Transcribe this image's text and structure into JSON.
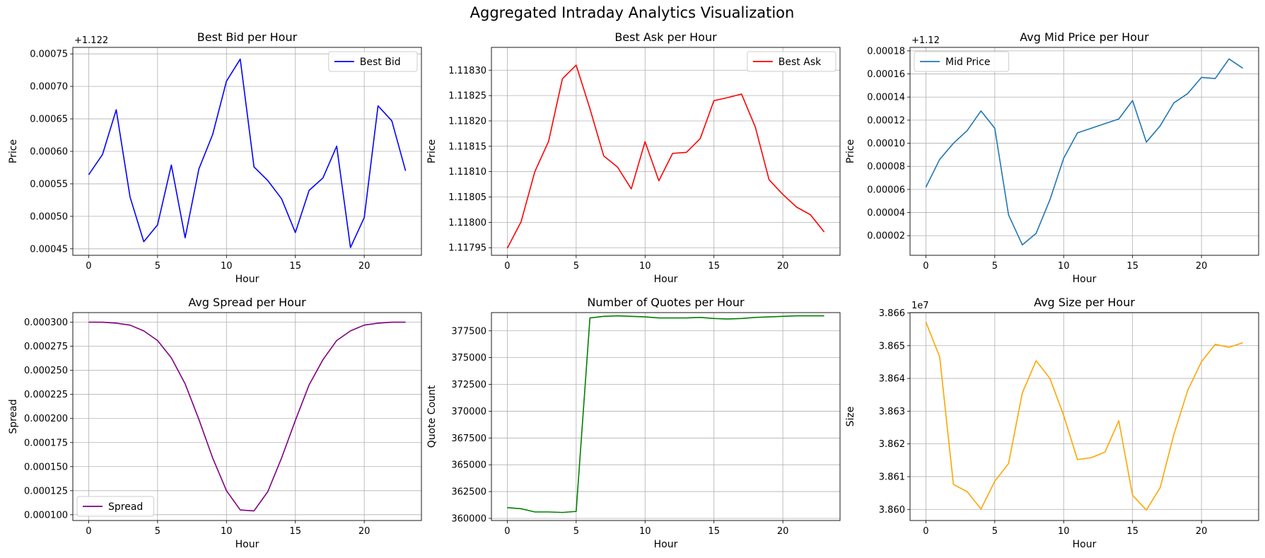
{
  "figure": {
    "title": "Aggregated Intraday Analytics Visualization"
  },
  "chart_data": [
    {
      "type": "line",
      "title": "Best Bid per Hour",
      "xlabel": "Hour",
      "ylabel": "Price",
      "offset_label": "+1.122",
      "ylim": [
        0.00044,
        0.00076
      ],
      "xlim": [
        -1.15,
        24.15
      ],
      "x_ticks": [
        0,
        5,
        10,
        15,
        20
      ],
      "y_ticks": [
        0.00045,
        0.0005,
        0.00055,
        0.0006,
        0.00065,
        0.0007,
        0.00075
      ],
      "y_tick_labels": [
        "0.00045",
        "0.00050",
        "0.00055",
        "0.00060",
        "0.00065",
        "0.00070",
        "0.00075"
      ],
      "grid": true,
      "legend": "upper right",
      "series": [
        {
          "name": "Best Bid",
          "color": "#0000ff",
          "x": [
            0,
            1,
            2,
            3,
            4,
            5,
            6,
            7,
            8,
            9,
            10,
            11,
            12,
            13,
            14,
            15,
            16,
            17,
            18,
            19,
            20,
            21,
            22,
            23
          ],
          "values": [
            0.000564,
            0.000595,
            0.000664,
            0.00053,
            0.000461,
            0.000487,
            0.000579,
            0.000467,
            0.000573,
            0.000626,
            0.000708,
            0.000742,
            0.000576,
            0.000555,
            0.000527,
            0.000475,
            0.00054,
            0.000559,
            0.000608,
            0.000452,
            0.000498,
            0.00067,
            0.000647,
            0.00057
          ]
        }
      ]
    },
    {
      "type": "line",
      "title": "Best Ask per Hour",
      "xlabel": "Hour",
      "ylabel": "Price",
      "offset_label": "",
      "ylim": [
        1.117935,
        1.118345
      ],
      "xlim": [
        -1.15,
        24.15
      ],
      "x_ticks": [
        0,
        5,
        10,
        15,
        20
      ],
      "y_ticks": [
        1.11795,
        1.118,
        1.11805,
        1.1181,
        1.11815,
        1.1182,
        1.11825,
        1.1183
      ],
      "y_tick_labels": [
        "1.11795",
        "1.11800",
        "1.11805",
        "1.11810",
        "1.11815",
        "1.11820",
        "1.11825",
        "1.11830"
      ],
      "grid": true,
      "legend": "upper right",
      "series": [
        {
          "name": "Best Ask",
          "color": "#ff0000",
          "x": [
            0,
            1,
            2,
            3,
            4,
            5,
            6,
            7,
            8,
            9,
            10,
            11,
            12,
            13,
            14,
            15,
            16,
            17,
            18,
            19,
            20,
            21,
            22,
            23
          ],
          "values": [
            1.117949,
            1.118001,
            1.1181,
            1.11816,
            1.118283,
            1.11831,
            1.118224,
            1.118131,
            1.118109,
            1.118066,
            1.118159,
            1.118082,
            1.118136,
            1.118138,
            1.118165,
            1.11824,
            1.118246,
            1.118253,
            1.118188,
            1.118084,
            1.118055,
            1.11803,
            1.118015,
            1.117981
          ]
        }
      ]
    },
    {
      "type": "line",
      "title": "Avg Mid Price per Hour",
      "xlabel": "Hour",
      "ylabel": "Price",
      "offset_label": "+1.12",
      "ylim": [
        3e-06,
        0.000183
      ],
      "xlim": [
        -1.15,
        24.15
      ],
      "x_ticks": [
        0,
        5,
        10,
        15,
        20
      ],
      "y_ticks": [
        2e-05,
        4e-05,
        6e-05,
        8e-05,
        0.0001,
        0.00012,
        0.00014,
        0.00016,
        0.00018
      ],
      "y_tick_labels": [
        "0.00002",
        "0.00004",
        "0.00006",
        "0.00008",
        "0.00010",
        "0.00012",
        "0.00014",
        "0.00016",
        "0.00018"
      ],
      "grid": true,
      "legend": "upper left",
      "series": [
        {
          "name": "Mid Price",
          "color": "#1f77b4",
          "x": [
            0,
            1,
            2,
            3,
            4,
            5,
            6,
            7,
            8,
            9,
            10,
            11,
            12,
            13,
            14,
            15,
            16,
            17,
            18,
            19,
            20,
            21,
            22,
            23
          ],
          "values": [
            6.2e-05,
            8.6e-05,
            0.0001,
            0.000111,
            0.000128,
            0.000113,
            3.8e-05,
            1.2e-05,
            2.2e-05,
            5.1e-05,
            8.7e-05,
            0.000109,
            0.000113,
            0.000117,
            0.000121,
            0.000137,
            0.000101,
            0.000115,
            0.000135,
            0.000143,
            0.000157,
            0.000156,
            0.000173,
            0.000165
          ]
        }
      ]
    },
    {
      "type": "line",
      "title": "Avg Spread per Hour",
      "xlabel": "Hour",
      "ylabel": "Spread",
      "offset_label": "",
      "ylim": [
        9.4e-05,
        0.00031
      ],
      "xlim": [
        -1.15,
        24.15
      ],
      "x_ticks": [
        0,
        5,
        10,
        15,
        20
      ],
      "y_ticks": [
        0.0001,
        0.000125,
        0.00015,
        0.000175,
        0.0002,
        0.000225,
        0.00025,
        0.000275,
        0.0003
      ],
      "y_tick_labels": [
        "0.000100",
        "0.000125",
        "0.000150",
        "0.000175",
        "0.000200",
        "0.000225",
        "0.000250",
        "0.000275",
        "0.000300"
      ],
      "grid": true,
      "legend": "lower left",
      "series": [
        {
          "name": "Spread",
          "color": "#800080",
          "x": [
            0,
            1,
            2,
            3,
            4,
            5,
            6,
            7,
            8,
            9,
            10,
            11,
            12,
            13,
            14,
            15,
            16,
            17,
            18,
            19,
            20,
            21,
            22,
            23
          ],
          "values": [
            0.0003,
            0.0003,
            0.000299,
            0.000297,
            0.000291,
            0.000281,
            0.000263,
            0.000236,
            0.000199,
            0.000159,
            0.000125,
            0.000105,
            0.000104,
            0.000124,
            0.000159,
            0.000198,
            0.000235,
            0.000261,
            0.000281,
            0.000291,
            0.000297,
            0.000299,
            0.0003,
            0.0003
          ]
        }
      ]
    },
    {
      "type": "line",
      "title": "Number of Quotes per Hour",
      "xlabel": "Hour",
      "ylabel": "Quote Count",
      "offset_label": "",
      "ylim": [
        359800,
        379200
      ],
      "xlim": [
        -1.15,
        24.15
      ],
      "x_ticks": [
        0,
        5,
        10,
        15,
        20
      ],
      "y_ticks": [
        360000,
        362500,
        365000,
        367500,
        370000,
        372500,
        375000,
        377500
      ],
      "y_tick_labels": [
        "360000",
        "362500",
        "365000",
        "367500",
        "370000",
        "372500",
        "375000",
        "377500"
      ],
      "grid": true,
      "legend": "",
      "series": [
        {
          "name": "",
          "color": "#008000",
          "x": [
            0,
            1,
            2,
            3,
            4,
            5,
            6,
            7,
            8,
            9,
            10,
            11,
            12,
            13,
            14,
            15,
            16,
            17,
            18,
            19,
            20,
            21,
            22,
            23
          ],
          "values": [
            361000,
            360900,
            360600,
            360600,
            360550,
            360650,
            378700,
            378850,
            378900,
            378850,
            378800,
            378700,
            378700,
            378700,
            378750,
            378650,
            378600,
            378650,
            378750,
            378800,
            378850,
            378900,
            378900,
            378900
          ]
        }
      ]
    },
    {
      "type": "line",
      "title": "Avg Size per Hour",
      "xlabel": "Hour",
      "ylabel": "Size",
      "offset_label": "1e7",
      "ylim": [
        3.85966,
        3.86601
      ],
      "xlim": [
        -1.15,
        24.15
      ],
      "x_ticks": [
        0,
        5,
        10,
        15,
        20
      ],
      "y_ticks": [
        3.86,
        3.861,
        3.862,
        3.863,
        3.864,
        3.865,
        3.866
      ],
      "y_tick_labels": [
        "3.860",
        "3.861",
        "3.862",
        "3.863",
        "3.864",
        "3.865",
        "3.866"
      ],
      "grid": true,
      "legend": "",
      "series": [
        {
          "name": "",
          "color": "#ffa500",
          "x": [
            0,
            1,
            2,
            3,
            4,
            5,
            6,
            7,
            8,
            9,
            10,
            11,
            12,
            13,
            14,
            15,
            16,
            17,
            18,
            19,
            20,
            21,
            22,
            23
          ],
          "values": [
            3.86572,
            3.86466,
            3.86076,
            3.86054,
            3.86001,
            3.86086,
            3.8614,
            3.86356,
            3.86454,
            3.864,
            3.86287,
            3.86152,
            3.86158,
            3.86175,
            3.86271,
            3.86043,
            3.85998,
            3.86066,
            3.86229,
            3.86363,
            3.86451,
            3.86504,
            3.86495,
            3.86509
          ]
        }
      ]
    }
  ]
}
